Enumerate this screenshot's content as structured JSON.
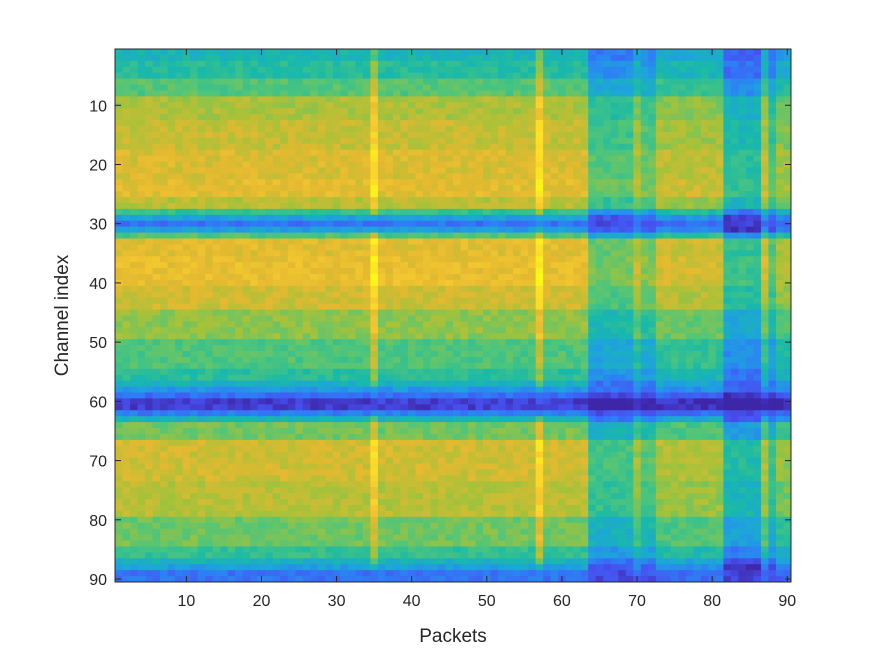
{
  "chart_data": {
    "type": "heatmap",
    "title": "",
    "xlabel": "Packets",
    "ylabel": "Channel index",
    "x_range": [
      0.5,
      90.5
    ],
    "y_range": [
      0.5,
      90.5
    ],
    "y_direction": "reversed",
    "rows": 90,
    "cols": 90,
    "x_ticks": [
      10,
      20,
      30,
      40,
      50,
      60,
      70,
      80,
      90
    ],
    "y_ticks": [
      10,
      20,
      30,
      40,
      50,
      60,
      70,
      80,
      90
    ],
    "colormap": "parula",
    "colormap_stops": [
      "#3e26a8",
      "#4652f0",
      "#2f7df6",
      "#1ea3dd",
      "#19b9a9",
      "#4fc57a",
      "#a4c23a",
      "#e4b930",
      "#fcd02f",
      "#f9fb15"
    ],
    "grid": false,
    "colorbar": false,
    "value_range": [
      0,
      1
    ],
    "row_profile": [
      {
        "rows": [
          1,
          2
        ],
        "value": 0.42
      },
      {
        "rows": [
          3,
          5
        ],
        "value": 0.47
      },
      {
        "rows": [
          6,
          8
        ],
        "value": 0.56
      },
      {
        "rows": [
          9,
          12
        ],
        "value": 0.68
      },
      {
        "rows": [
          13,
          17
        ],
        "value": 0.72
      },
      {
        "rows": [
          18,
          22
        ],
        "value": 0.76
      },
      {
        "rows": [
          23,
          25
        ],
        "value": 0.78
      },
      {
        "rows": [
          26,
          27
        ],
        "value": 0.7
      },
      {
        "rows": [
          28,
          28
        ],
        "value": 0.5
      },
      {
        "rows": [
          29,
          29
        ],
        "value": 0.33
      },
      {
        "rows": [
          30,
          30
        ],
        "value": 0.2
      },
      {
        "rows": [
          31,
          31
        ],
        "value": 0.32
      },
      {
        "rows": [
          32,
          32
        ],
        "value": 0.55
      },
      {
        "rows": [
          33,
          35
        ],
        "value": 0.78
      },
      {
        "rows": [
          36,
          40
        ],
        "value": 0.8
      },
      {
        "rows": [
          41,
          44
        ],
        "value": 0.74
      },
      {
        "rows": [
          45,
          49
        ],
        "value": 0.64
      },
      {
        "rows": [
          50,
          54
        ],
        "value": 0.55
      },
      {
        "rows": [
          55,
          56
        ],
        "value": 0.48
      },
      {
        "rows": [
          57,
          57
        ],
        "value": 0.4
      },
      {
        "rows": [
          58,
          58
        ],
        "value": 0.3
      },
      {
        "rows": [
          59,
          59
        ],
        "value": 0.18
      },
      {
        "rows": [
          60,
          61
        ],
        "value": 0.06
      },
      {
        "rows": [
          62,
          62
        ],
        "value": 0.22
      },
      {
        "rows": [
          63,
          63
        ],
        "value": 0.4
      },
      {
        "rows": [
          64,
          66
        ],
        "value": 0.6
      },
      {
        "rows": [
          67,
          73
        ],
        "value": 0.74
      },
      {
        "rows": [
          74,
          79
        ],
        "value": 0.7
      },
      {
        "rows": [
          80,
          84
        ],
        "value": 0.6
      },
      {
        "rows": [
          85,
          86
        ],
        "value": 0.5
      },
      {
        "rows": [
          87,
          87
        ],
        "value": 0.4
      },
      {
        "rows": [
          88,
          88
        ],
        "value": 0.32
      },
      {
        "rows": [
          89,
          90
        ],
        "value": 0.2
      }
    ],
    "column_profile": [
      {
        "cols": [
          1,
          34
        ],
        "offset": 0.0
      },
      {
        "cols": [
          35,
          35
        ],
        "offset": 0.16
      },
      {
        "cols": [
          36,
          56
        ],
        "offset": 0.0
      },
      {
        "cols": [
          57,
          57
        ],
        "offset": 0.18
      },
      {
        "cols": [
          58,
          63
        ],
        "offset": 0.0
      },
      {
        "cols": [
          64,
          69
        ],
        "offset": -0.2
      },
      {
        "cols": [
          70,
          70
        ],
        "offset": -0.08
      },
      {
        "cols": [
          71,
          72
        ],
        "offset": -0.17
      },
      {
        "cols": [
          73,
          81
        ],
        "offset": -0.05
      },
      {
        "cols": [
          82,
          86
        ],
        "offset": -0.28
      },
      {
        "cols": [
          87,
          87
        ],
        "offset": -0.05
      },
      {
        "cols": [
          88,
          88
        ],
        "offset": -0.22
      },
      {
        "cols": [
          89,
          90
        ],
        "offset": -0.1
      }
    ]
  }
}
